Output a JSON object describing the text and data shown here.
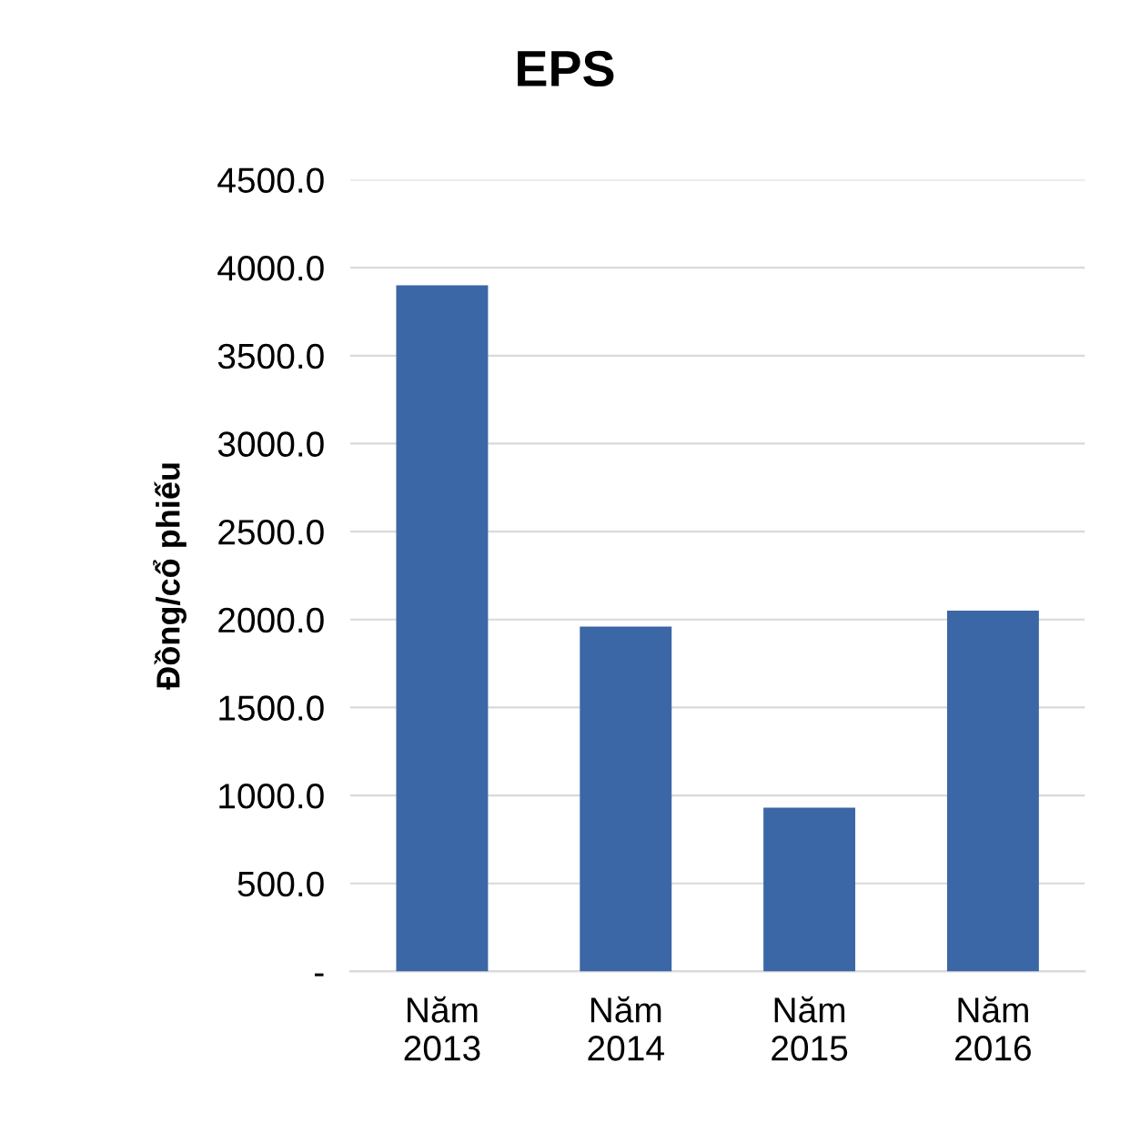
{
  "chart_data": {
    "type": "bar",
    "title": "EPS",
    "ylabel": "Đồng/cổ phiếu",
    "categories": [
      "Năm\n2013",
      "Năm\n2014",
      "Năm\n2015",
      "Năm\n2016"
    ],
    "values": [
      3900,
      1960,
      930,
      2050
    ],
    "color": "#3b67a6",
    "ylim": [
      0,
      4500
    ],
    "yticks": [
      {
        "value": 0,
        "label": "-"
      },
      {
        "value": 500,
        "label": "500.0"
      },
      {
        "value": 1000,
        "label": "1000.0"
      },
      {
        "value": 1500,
        "label": "1500.0"
      },
      {
        "value": 2000,
        "label": "2000.0"
      },
      {
        "value": 2500,
        "label": "2500.0"
      },
      {
        "value": 3000,
        "label": "3000.0"
      },
      {
        "value": 3500,
        "label": "3500.0"
      },
      {
        "value": 4000,
        "label": "4000.0"
      },
      {
        "value": 4500,
        "label": "4500.0"
      }
    ],
    "grid": "y",
    "legend": false
  }
}
